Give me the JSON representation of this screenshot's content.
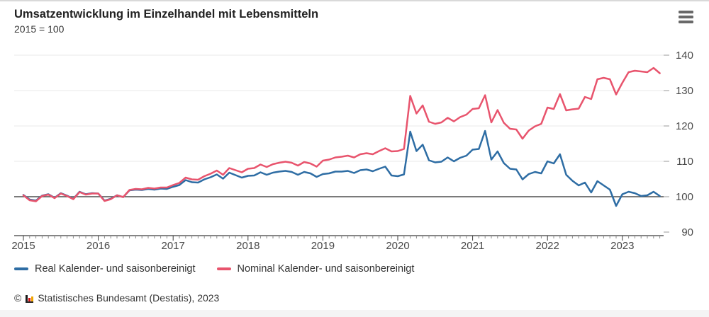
{
  "header": {
    "title": "Umsatzentwicklung im Einzelhandel mit Lebensmitteln",
    "subtitle": "2015 = 100"
  },
  "menu": {
    "icon": "hamburger-menu-icon"
  },
  "chart_data": {
    "type": "line",
    "title": "Umsatzentwicklung im Einzelhandel mit Lebensmitteln",
    "subtitle": "2015 = 100",
    "x_start": "2015-01",
    "x_freq": "monthly",
    "x_year_ticks": [
      "2015",
      "2016",
      "2017",
      "2018",
      "2019",
      "2020",
      "2021",
      "2022",
      "2023"
    ],
    "yticks": [
      90,
      100,
      110,
      120,
      130,
      140
    ],
    "ylim": [
      89,
      141
    ],
    "baseline_value": 100,
    "grid": "horizontal",
    "legend_position": "bottom-left",
    "series": [
      {
        "name": "Real Kalender- und saisonbereinigt",
        "color": "#2e6da4",
        "values": [
          100.5,
          99.2,
          98.9,
          100.3,
          100.7,
          99.7,
          101.0,
          100.3,
          99.4,
          101.4,
          100.7,
          101.0,
          100.9,
          98.9,
          99.4,
          100.4,
          99.9,
          101.8,
          102.0,
          101.9,
          102.2,
          102.0,
          102.3,
          102.2,
          102.8,
          103.3,
          104.7,
          104.1,
          104.0,
          104.9,
          105.5,
          106.3,
          105.1,
          106.8,
          106.1,
          105.4,
          105.9,
          106.0,
          106.9,
          106.2,
          106.8,
          107.1,
          107.3,
          107.0,
          106.2,
          107.0,
          106.6,
          105.6,
          106.4,
          106.6,
          107.1,
          107.1,
          107.3,
          106.7,
          107.5,
          107.7,
          107.2,
          107.9,
          108.5,
          106.0,
          105.8,
          106.3,
          118.4,
          112.9,
          114.7,
          110.3,
          109.7,
          109.9,
          111.1,
          110.0,
          111.0,
          111.6,
          113.3,
          113.5,
          118.6,
          110.5,
          112.8,
          109.5,
          107.9,
          107.7,
          104.9,
          106.4,
          107.0,
          106.6,
          110.0,
          109.4,
          112.0,
          106.2,
          104.5,
          103.2,
          104.0,
          101.2,
          104.4,
          103.2,
          102.0,
          97.4,
          100.7,
          101.4,
          101.0,
          100.2,
          100.4,
          101.4,
          100.2
        ]
      },
      {
        "name": "Nominal Kalender- und saisonbereinigt",
        "color": "#e8546d",
        "values": [
          100.4,
          99.0,
          98.7,
          100.2,
          100.6,
          99.6,
          100.9,
          100.2,
          99.3,
          101.3,
          100.6,
          100.9,
          100.9,
          98.8,
          99.3,
          100.4,
          99.9,
          101.9,
          102.2,
          102.1,
          102.5,
          102.3,
          102.6,
          102.6,
          103.3,
          103.9,
          105.4,
          104.9,
          104.8,
          105.8,
          106.5,
          107.4,
          106.2,
          108.1,
          107.5,
          106.9,
          107.9,
          108.1,
          109.1,
          108.4,
          109.2,
          109.6,
          109.9,
          109.6,
          108.8,
          109.8,
          109.4,
          108.5,
          110.2,
          110.5,
          111.1,
          111.3,
          111.6,
          111.1,
          112.0,
          112.3,
          112.0,
          112.9,
          113.7,
          112.8,
          112.9,
          113.5,
          128.5,
          123.5,
          125.8,
          121.2,
          120.6,
          121.0,
          122.3,
          121.3,
          122.5,
          123.2,
          124.8,
          125.0,
          128.7,
          121.0,
          124.5,
          120.9,
          119.2,
          119.0,
          116.4,
          118.7,
          119.9,
          120.6,
          125.2,
          124.8,
          129.0,
          124.4,
          124.7,
          124.9,
          128.2,
          127.6,
          133.2,
          133.6,
          133.2,
          128.9,
          132.2,
          135.2,
          135.6,
          135.4,
          135.2,
          136.4,
          134.9
        ]
      }
    ],
    "colors": {
      "grid": "#e8e8e8",
      "baseline": "#4f4f4f",
      "axis": "#3c3c3c",
      "tick_minor": "#8a8a8a",
      "label": "#4a4a4a"
    }
  },
  "footer": {
    "copyright_symbol": "©",
    "source": "Statistisches Bundesamt (Destatis), 2023"
  }
}
